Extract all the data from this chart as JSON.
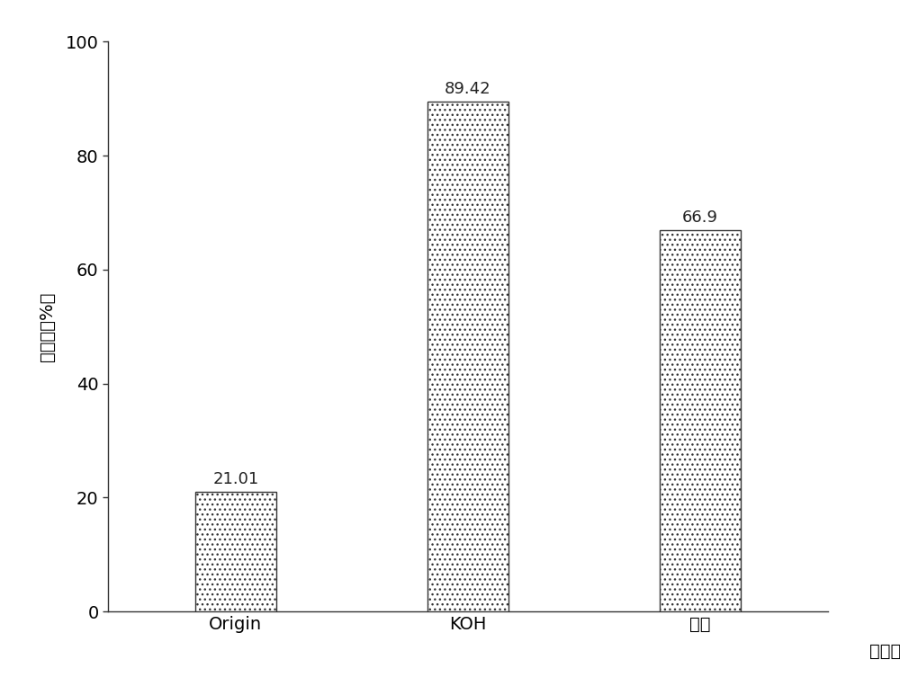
{
  "categories": [
    "Origin",
    "KOH",
    "磷酸"
  ],
  "values": [
    21.01,
    89.42,
    66.9
  ],
  "bar_color": "#ffffff",
  "bar_edgecolor": "#333333",
  "bar_width": 0.35,
  "xlabel": "活化剂",
  "ylabel": "吸附率（%）",
  "ylim": [
    0,
    100
  ],
  "yticks": [
    0,
    20,
    40,
    60,
    80,
    100
  ],
  "value_labels": [
    "21.01",
    "89.42",
    "66.9"
  ],
  "background_color": "#ffffff",
  "tick_fontsize": 14,
  "annotation_fontsize": 13,
  "xlabel_fontsize": 14,
  "ylabel_fontsize": 14
}
